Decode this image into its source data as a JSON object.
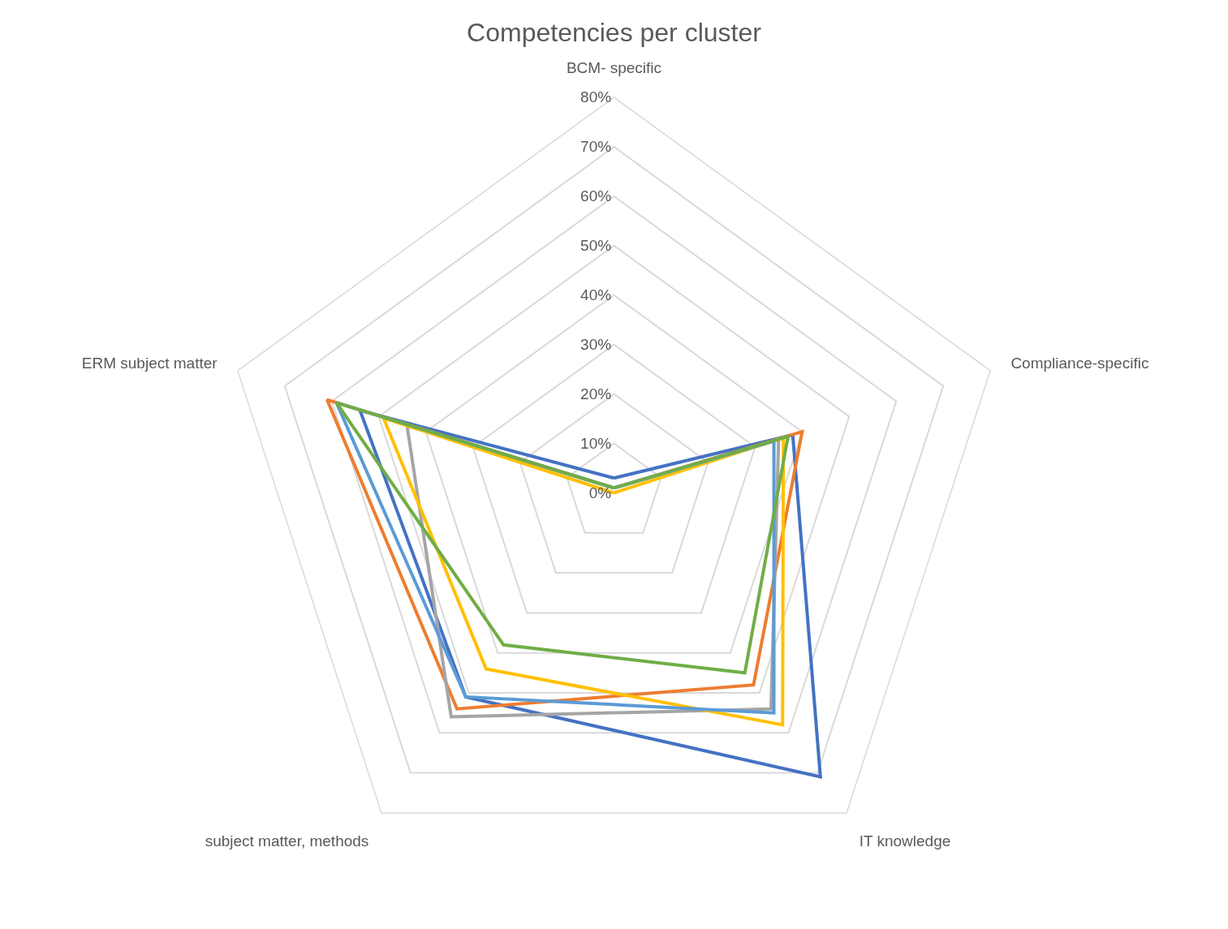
{
  "chart_data": {
    "type": "radar",
    "title": "Competencies per cluster",
    "categories": [
      "BCM- specific",
      "Compliance-specific",
      "IT knowledge",
      "subject matter, methods",
      "ERM subject matter"
    ],
    "ylim": [
      0,
      80
    ],
    "yticks": [
      {
        "value": 0,
        "label": "0%"
      },
      {
        "value": 10,
        "label": "10%"
      },
      {
        "value": 20,
        "label": "20%"
      },
      {
        "value": 30,
        "label": "30%"
      },
      {
        "value": 40,
        "label": "40%"
      },
      {
        "value": 50,
        "label": "50%"
      },
      {
        "value": 60,
        "label": "60%"
      },
      {
        "value": 70,
        "label": "70%"
      },
      {
        "value": 80,
        "label": "80%"
      }
    ],
    "grid": true,
    "marker": "none",
    "line_style": "solid",
    "series": [
      {
        "color": "#4472c4",
        "values": [
          3,
          38,
          71,
          51,
          54
        ]
      },
      {
        "color": "#ed7d31",
        "values": [
          1,
          40,
          48,
          54,
          61
        ]
      },
      {
        "color": "#a5a5a5",
        "values": [
          1,
          35,
          54,
          56,
          44
        ]
      },
      {
        "color": "#ffc000",
        "values": [
          0,
          36,
          58,
          44,
          49
        ]
      },
      {
        "color": "#5b9bd5",
        "values": [
          1,
          34,
          55,
          51,
          59
        ]
      },
      {
        "color": "#70ad47",
        "values": [
          1,
          37,
          45,
          38,
          59
        ]
      }
    ]
  }
}
